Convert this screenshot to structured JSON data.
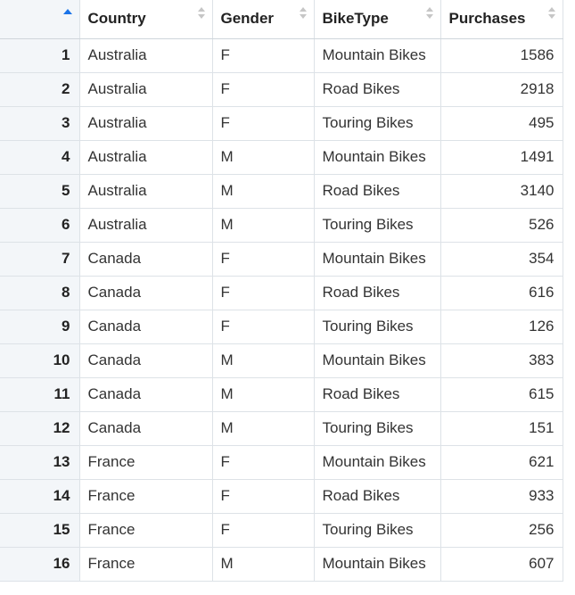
{
  "table": {
    "columns": [
      {
        "label": "",
        "sorted": "asc"
      },
      {
        "label": "Country"
      },
      {
        "label": "Gender"
      },
      {
        "label": "BikeType"
      },
      {
        "label": "Purchases"
      }
    ],
    "rows": [
      {
        "idx": "1",
        "country": "Australia",
        "gender": "F",
        "bike": "Mountain Bikes",
        "purchases": "1586"
      },
      {
        "idx": "2",
        "country": "Australia",
        "gender": "F",
        "bike": "Road Bikes",
        "purchases": "2918"
      },
      {
        "idx": "3",
        "country": "Australia",
        "gender": "F",
        "bike": "Touring Bikes",
        "purchases": "495"
      },
      {
        "idx": "4",
        "country": "Australia",
        "gender": "M",
        "bike": "Mountain Bikes",
        "purchases": "1491"
      },
      {
        "idx": "5",
        "country": "Australia",
        "gender": "M",
        "bike": "Road Bikes",
        "purchases": "3140"
      },
      {
        "idx": "6",
        "country": "Australia",
        "gender": "M",
        "bike": "Touring Bikes",
        "purchases": "526"
      },
      {
        "idx": "7",
        "country": "Canada",
        "gender": "F",
        "bike": "Mountain Bikes",
        "purchases": "354"
      },
      {
        "idx": "8",
        "country": "Canada",
        "gender": "F",
        "bike": "Road Bikes",
        "purchases": "616"
      },
      {
        "idx": "9",
        "country": "Canada",
        "gender": "F",
        "bike": "Touring Bikes",
        "purchases": "126"
      },
      {
        "idx": "10",
        "country": "Canada",
        "gender": "M",
        "bike": "Mountain Bikes",
        "purchases": "383"
      },
      {
        "idx": "11",
        "country": "Canada",
        "gender": "M",
        "bike": "Road Bikes",
        "purchases": "615"
      },
      {
        "idx": "12",
        "country": "Canada",
        "gender": "M",
        "bike": "Touring Bikes",
        "purchases": "151"
      },
      {
        "idx": "13",
        "country": "France",
        "gender": "F",
        "bike": "Mountain Bikes",
        "purchases": "621"
      },
      {
        "idx": "14",
        "country": "France",
        "gender": "F",
        "bike": "Road Bikes",
        "purchases": "933"
      },
      {
        "idx": "15",
        "country": "France",
        "gender": "F",
        "bike": "Touring Bikes",
        "purchases": "256"
      },
      {
        "idx": "16",
        "country": "France",
        "gender": "M",
        "bike": "Mountain Bikes",
        "purchases": "607"
      }
    ]
  },
  "icons": {
    "sort_active": "sort-ascending-icon",
    "sort_inactive": "sort-both-icon"
  },
  "colors": {
    "accent": "#1a73e8",
    "index_bg": "#f3f6f9",
    "grid_line": "#dde2e7"
  }
}
